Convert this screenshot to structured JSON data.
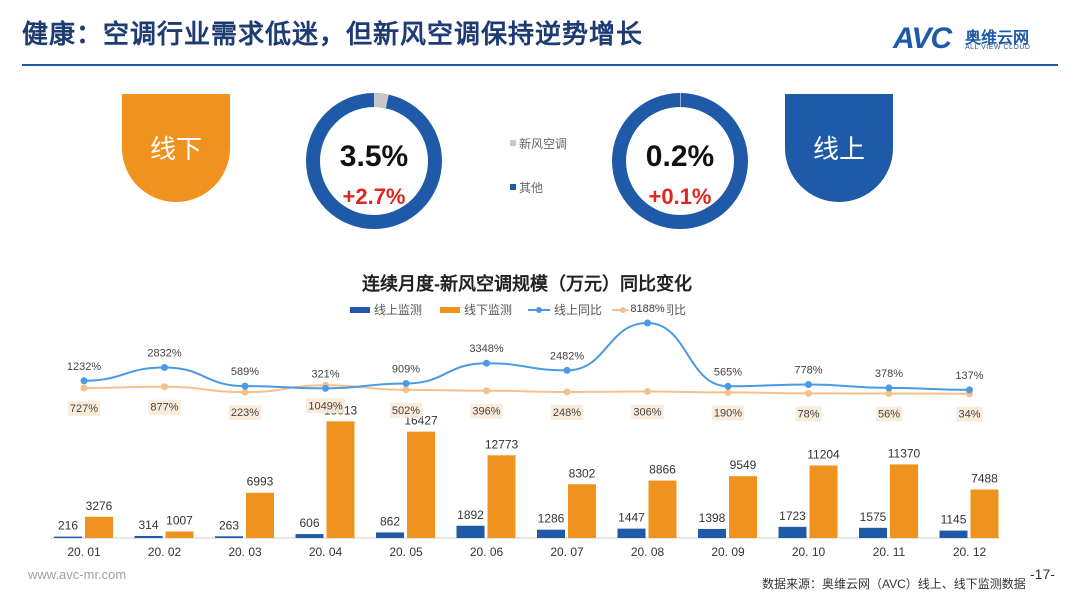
{
  "title": "健康：空调行业需求低迷，但新风空调保持逆势增长",
  "logo": {
    "mark": "AVC",
    "name_cn": "奥维云网",
    "name_en": "ALL VIEW CLOUD"
  },
  "offline_badge": {
    "label": "线下",
    "color": "#f0921e"
  },
  "online_badge": {
    "label": "线上",
    "color": "#1f5aa8"
  },
  "donut_offline": {
    "share": "3.5%",
    "share_value": 3.5,
    "change": "+2.7%"
  },
  "donut_online": {
    "share": "0.2%",
    "share_value": 0.2,
    "change": "+0.1%"
  },
  "donut_legend": [
    {
      "label": "新风空调",
      "color": "#c8c8c8"
    },
    {
      "label": "其他",
      "color": "#1f5aa8"
    }
  ],
  "colors": {
    "online_bar": "#1f5aa8",
    "offline_bar": "#f0921e",
    "online_line": "#4a9ae6",
    "offline_line": "#f6c08a",
    "accent_red": "#e0271f"
  },
  "chart_data": {
    "type": "bar",
    "title": "连续月度-新风空调规模（万元）同比变化",
    "categories": [
      "20. 01",
      "20. 02",
      "20. 03",
      "20. 04",
      "20. 05",
      "20. 06",
      "20. 07",
      "20. 08",
      "20. 09",
      "20. 10",
      "20. 11",
      "20. 12"
    ],
    "series": [
      {
        "name": "线上监测",
        "kind": "bar",
        "values": [
          216,
          314,
          263,
          606,
          862,
          1892,
          1286,
          1447,
          1398,
          1723,
          1575,
          1145
        ]
      },
      {
        "name": "线下监测",
        "kind": "bar",
        "values": [
          3276,
          1007,
          6993,
          18013,
          16427,
          12773,
          8302,
          8866,
          9549,
          11204,
          11370,
          7488
        ]
      },
      {
        "name": "线上同比",
        "kind": "line",
        "values": [
          1232,
          2832,
          589,
          321,
          909,
          3348,
          2482,
          8188,
          565,
          778,
          378,
          137
        ],
        "labels": [
          "1232%",
          "2832%",
          "589%",
          "321%",
          "909%",
          "3348%",
          "2482%",
          "8188%",
          "565%",
          "778%",
          "378%",
          "137%"
        ]
      },
      {
        "name": "线下同比",
        "kind": "line",
        "values": [
          727,
          877,
          223,
          1049,
          502,
          396,
          248,
          306,
          190,
          78,
          56,
          34
        ],
        "labels": [
          "727%",
          "877%",
          "223%",
          "1049%",
          "502%",
          "396%",
          "248%",
          "306%",
          "190%",
          "78%",
          "56%",
          "34%"
        ]
      }
    ],
    "legend": [
      "线上监测",
      "线下监测",
      "线上同比",
      "线下同比"
    ],
    "legend_position": "top-center"
  },
  "footer": {
    "website": "www.avc-mr.com",
    "source": "数据来源：奥维云网（AVC）线上、线下监测数据",
    "page": "-17-"
  }
}
